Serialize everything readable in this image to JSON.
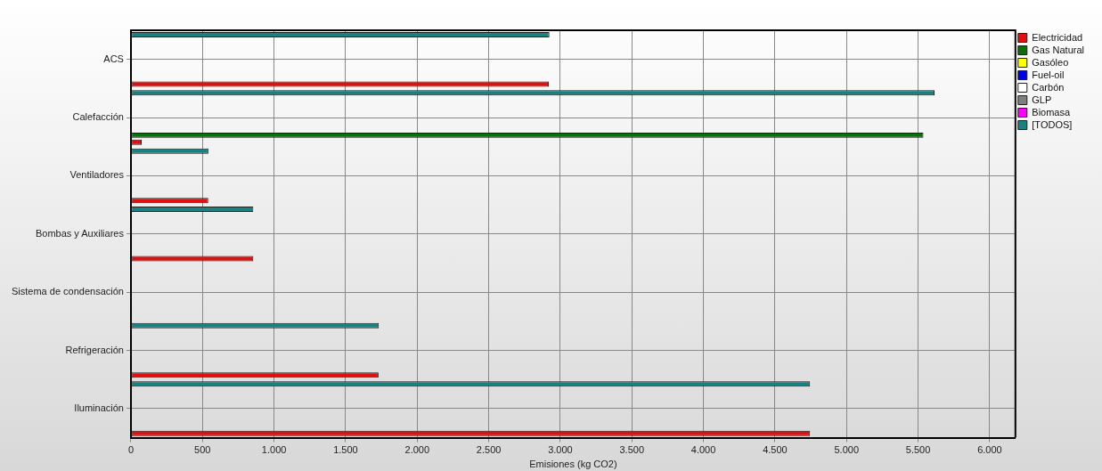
{
  "chart_data": {
    "type": "bar",
    "orientation": "horizontal",
    "xlabel": "Emisiones (kg CO2)",
    "categories": [
      "ACS",
      "Calefacción",
      "Ventiladores",
      "Bombas y Auxiliares",
      "Sistema de condensación",
      "Refrigeración",
      "Iluminación"
    ],
    "series": [
      {
        "name": "Electricidad",
        "color": "#e01010",
        "values": [
          2920,
          75,
          540,
          855,
          null,
          1730,
          4745
        ]
      },
      {
        "name": "Gas Natural",
        "color": "#0a6e0a",
        "values": [
          null,
          5537,
          null,
          null,
          null,
          null,
          null
        ]
      },
      {
        "name": "Gasóleo",
        "color": "#ffff00",
        "values": [
          null,
          null,
          null,
          null,
          null,
          null,
          null
        ]
      },
      {
        "name": "Fuel-oil",
        "color": "#0000e0",
        "values": [
          null,
          null,
          null,
          null,
          null,
          null,
          null
        ]
      },
      {
        "name": "Carbón",
        "color": "#ffffff",
        "values": [
          null,
          null,
          null,
          null,
          null,
          null,
          null
        ]
      },
      {
        "name": "GLP",
        "color": "#808080",
        "values": [
          null,
          null,
          null,
          null,
          null,
          null,
          null
        ]
      },
      {
        "name": "Biomasa",
        "color": "#ff00ff",
        "values": [
          null,
          null,
          null,
          null,
          null,
          null,
          null
        ]
      },
      {
        "name": "[TODOS]",
        "color": "#1a8080",
        "values": [
          2924,
          5615,
          541,
          855,
          null,
          1732,
          4745
        ]
      }
    ],
    "xlim": [
      0,
      6180
    ],
    "xticks": [
      0,
      {
        "value": 500,
        "label": "500"
      },
      {
        "value": 1000,
        "label": "1.000"
      },
      {
        "value": 1500,
        "label": "1.500"
      },
      {
        "value": 2000,
        "label": "2.000"
      },
      {
        "value": 2500,
        "label": "2.500"
      },
      {
        "value": 3000,
        "label": "3.000"
      },
      {
        "value": 3500,
        "label": "3.500"
      },
      {
        "value": 4000,
        "label": "4.000"
      },
      {
        "value": 4500,
        "label": "4.500"
      },
      {
        "value": 5000,
        "label": "5.000"
      },
      {
        "value": 5500,
        "label": "5.500"
      },
      {
        "value": 6000,
        "label": "6.000"
      }
    ],
    "grid": true,
    "legend": "top right"
  }
}
